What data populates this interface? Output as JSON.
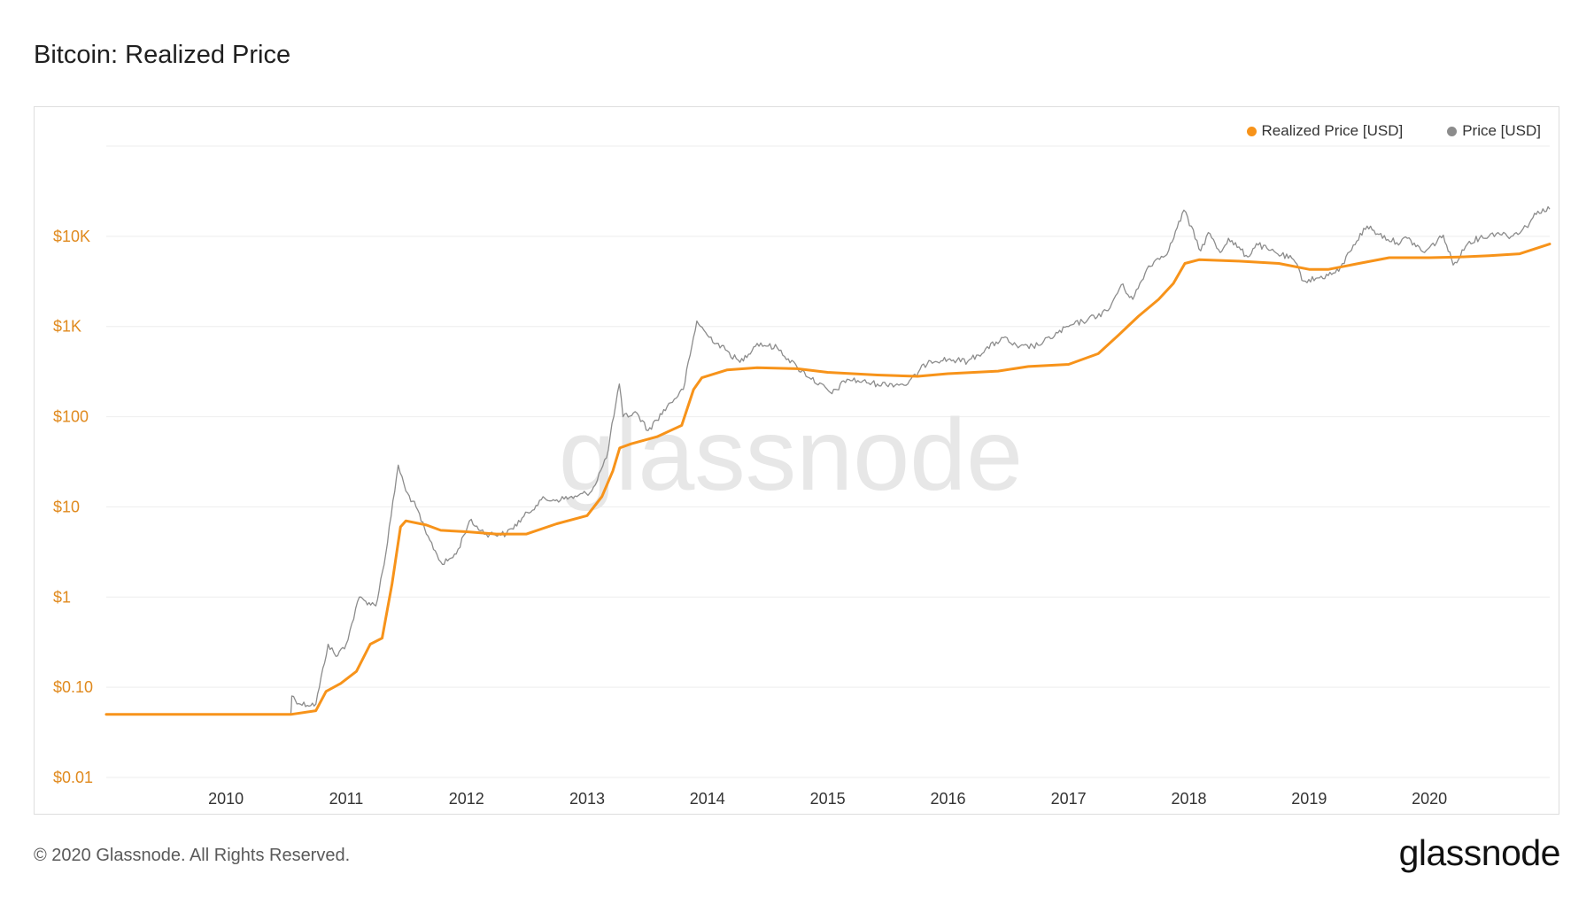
{
  "title": "Bitcoin: Realized Price",
  "footer": {
    "copyright": "© 2020 Glassnode. All Rights Reserved.",
    "logo": "glassnode"
  },
  "watermark": "glassnode",
  "colors": {
    "realized": "#f7931a",
    "price": "#8c8c8c",
    "tick": "#e08a1e",
    "grid": "#eeeeee",
    "watermark": "#e7e7e7"
  },
  "chart_data": {
    "type": "line",
    "title": "Bitcoin: Realized Price",
    "y_scale": "log",
    "ylim": [
      0.01,
      100000
    ],
    "y_ticks": [
      {
        "value": 0.01,
        "label": "$0.01"
      },
      {
        "value": 0.1,
        "label": "$0.10"
      },
      {
        "value": 1,
        "label": "$1"
      },
      {
        "value": 10,
        "label": "$10"
      },
      {
        "value": 100,
        "label": "$100"
      },
      {
        "value": 1000,
        "label": "$1K"
      },
      {
        "value": 10000,
        "label": "$10K"
      }
    ],
    "xlim": [
      "2009-01-03",
      "2020-12-31"
    ],
    "x_ticks": [
      "2010",
      "2011",
      "2012",
      "2013",
      "2014",
      "2015",
      "2016",
      "2017",
      "2018",
      "2019",
      "2020"
    ],
    "legend": {
      "position": "top-right",
      "items": [
        "Realized Price [USD]",
        "Price [USD]"
      ]
    },
    "grid": true,
    "series": [
      {
        "name": "Realized Price [USD]",
        "color": "#f7931a",
        "points": [
          [
            "2009-01-03",
            0.05
          ],
          [
            "2010-07-17",
            0.05
          ],
          [
            "2010-10-01",
            0.055
          ],
          [
            "2010-11-01",
            0.09
          ],
          [
            "2010-12-15",
            0.11
          ],
          [
            "2011-02-01",
            0.15
          ],
          [
            "2011-03-15",
            0.3
          ],
          [
            "2011-04-20",
            0.35
          ],
          [
            "2011-05-20",
            1.4
          ],
          [
            "2011-06-15",
            6.0
          ],
          [
            "2011-07-01",
            7.0
          ],
          [
            "2011-09-01",
            6.3
          ],
          [
            "2011-10-15",
            5.5
          ],
          [
            "2012-01-01",
            5.3
          ],
          [
            "2012-04-01",
            5.0
          ],
          [
            "2012-07-01",
            5.0
          ],
          [
            "2012-10-01",
            6.5
          ],
          [
            "2013-01-01",
            8.0
          ],
          [
            "2013-02-15",
            13
          ],
          [
            "2013-03-20",
            25
          ],
          [
            "2013-04-10",
            45
          ],
          [
            "2013-05-15",
            50
          ],
          [
            "2013-08-01",
            60
          ],
          [
            "2013-10-15",
            80
          ],
          [
            "2013-11-20",
            200
          ],
          [
            "2013-12-15",
            270
          ],
          [
            "2014-03-01",
            330
          ],
          [
            "2014-06-01",
            350
          ],
          [
            "2014-10-01",
            340
          ],
          [
            "2015-01-01",
            310
          ],
          [
            "2015-06-01",
            290
          ],
          [
            "2015-10-01",
            280
          ],
          [
            "2016-01-01",
            300
          ],
          [
            "2016-06-01",
            320
          ],
          [
            "2016-09-01",
            360
          ],
          [
            "2017-01-01",
            380
          ],
          [
            "2017-04-01",
            500
          ],
          [
            "2017-06-01",
            800
          ],
          [
            "2017-08-01",
            1300
          ],
          [
            "2017-10-01",
            2000
          ],
          [
            "2017-11-15",
            3000
          ],
          [
            "2017-12-20",
            5000
          ],
          [
            "2018-02-01",
            5500
          ],
          [
            "2018-06-01",
            5300
          ],
          [
            "2018-10-01",
            5000
          ],
          [
            "2019-01-01",
            4300
          ],
          [
            "2019-03-01",
            4300
          ],
          [
            "2019-06-01",
            5000
          ],
          [
            "2019-09-01",
            5800
          ],
          [
            "2020-01-01",
            5800
          ],
          [
            "2020-04-01",
            5900
          ],
          [
            "2020-07-01",
            6100
          ],
          [
            "2020-10-01",
            6400
          ],
          [
            "2020-12-31",
            8200
          ]
        ]
      },
      {
        "name": "Price [USD]",
        "color": "#8c8c8c",
        "points": [
          [
            "2010-07-17",
            0.05
          ],
          [
            "2010-07-20",
            0.08
          ],
          [
            "2010-08-15",
            0.065
          ],
          [
            "2010-10-01",
            0.065
          ],
          [
            "2010-11-07",
            0.3
          ],
          [
            "2010-12-01",
            0.22
          ],
          [
            "2011-01-01",
            0.3
          ],
          [
            "2011-02-10",
            1.0
          ],
          [
            "2011-03-01",
            0.9
          ],
          [
            "2011-04-01",
            0.8
          ],
          [
            "2011-05-01",
            3.0
          ],
          [
            "2011-06-08",
            29
          ],
          [
            "2011-07-01",
            15
          ],
          [
            "2011-08-01",
            10
          ],
          [
            "2011-09-01",
            5.0
          ],
          [
            "2011-10-20",
            2.3
          ],
          [
            "2011-12-01",
            3.0
          ],
          [
            "2012-01-10",
            7.0
          ],
          [
            "2012-03-01",
            5.0
          ],
          [
            "2012-05-01",
            5.0
          ],
          [
            "2012-08-15",
            12
          ],
          [
            "2012-10-01",
            12
          ],
          [
            "2012-12-01",
            13
          ],
          [
            "2013-01-15",
            15
          ],
          [
            "2013-03-01",
            35
          ],
          [
            "2013-04-09",
            230
          ],
          [
            "2013-04-20",
            100
          ],
          [
            "2013-06-01",
            110
          ],
          [
            "2013-07-05",
            70
          ],
          [
            "2013-09-01",
            130
          ],
          [
            "2013-10-20",
            200
          ],
          [
            "2013-11-30",
            1150
          ],
          [
            "2014-01-01",
            800
          ],
          [
            "2014-02-25",
            550
          ],
          [
            "2014-04-10",
            400
          ],
          [
            "2014-06-01",
            650
          ],
          [
            "2014-08-01",
            580
          ],
          [
            "2014-10-01",
            350
          ],
          [
            "2015-01-14",
            180
          ],
          [
            "2015-03-01",
            260
          ],
          [
            "2015-06-01",
            230
          ],
          [
            "2015-09-01",
            230
          ],
          [
            "2015-11-04",
            420
          ],
          [
            "2016-01-01",
            430
          ],
          [
            "2016-03-01",
            410
          ],
          [
            "2016-06-17",
            750
          ],
          [
            "2016-08-01",
            580
          ],
          [
            "2016-10-01",
            620
          ],
          [
            "2017-01-01",
            1000
          ],
          [
            "2017-03-01",
            1200
          ],
          [
            "2017-05-01",
            1500
          ],
          [
            "2017-06-10",
            2900
          ],
          [
            "2017-07-15",
            2000
          ],
          [
            "2017-09-01",
            4700
          ],
          [
            "2017-11-01",
            7000
          ],
          [
            "2017-12-17",
            19500
          ],
          [
            "2018-02-06",
            6900
          ],
          [
            "2018-03-01",
            11000
          ],
          [
            "2018-04-06",
            6600
          ],
          [
            "2018-05-01",
            9500
          ],
          [
            "2018-06-29",
            5900
          ],
          [
            "2018-07-25",
            8300
          ],
          [
            "2018-09-01",
            7000
          ],
          [
            "2018-11-15",
            5500
          ],
          [
            "2018-12-15",
            3200
          ],
          [
            "2019-02-01",
            3450
          ],
          [
            "2019-04-01",
            4100
          ],
          [
            "2019-05-15",
            8000
          ],
          [
            "2019-06-26",
            13000
          ],
          [
            "2019-08-01",
            10500
          ],
          [
            "2019-09-24",
            8500
          ],
          [
            "2019-10-26",
            9500
          ],
          [
            "2019-12-17",
            6600
          ],
          [
            "2020-02-12",
            10300
          ],
          [
            "2020-03-13",
            4800
          ],
          [
            "2020-05-01",
            8800
          ],
          [
            "2020-06-01",
            9500
          ],
          [
            "2020-07-27",
            11000
          ],
          [
            "2020-09-05",
            10000
          ],
          [
            "2020-10-21",
            12800
          ],
          [
            "2020-11-25",
            19000
          ],
          [
            "2020-12-31",
            20000
          ]
        ]
      }
    ]
  }
}
